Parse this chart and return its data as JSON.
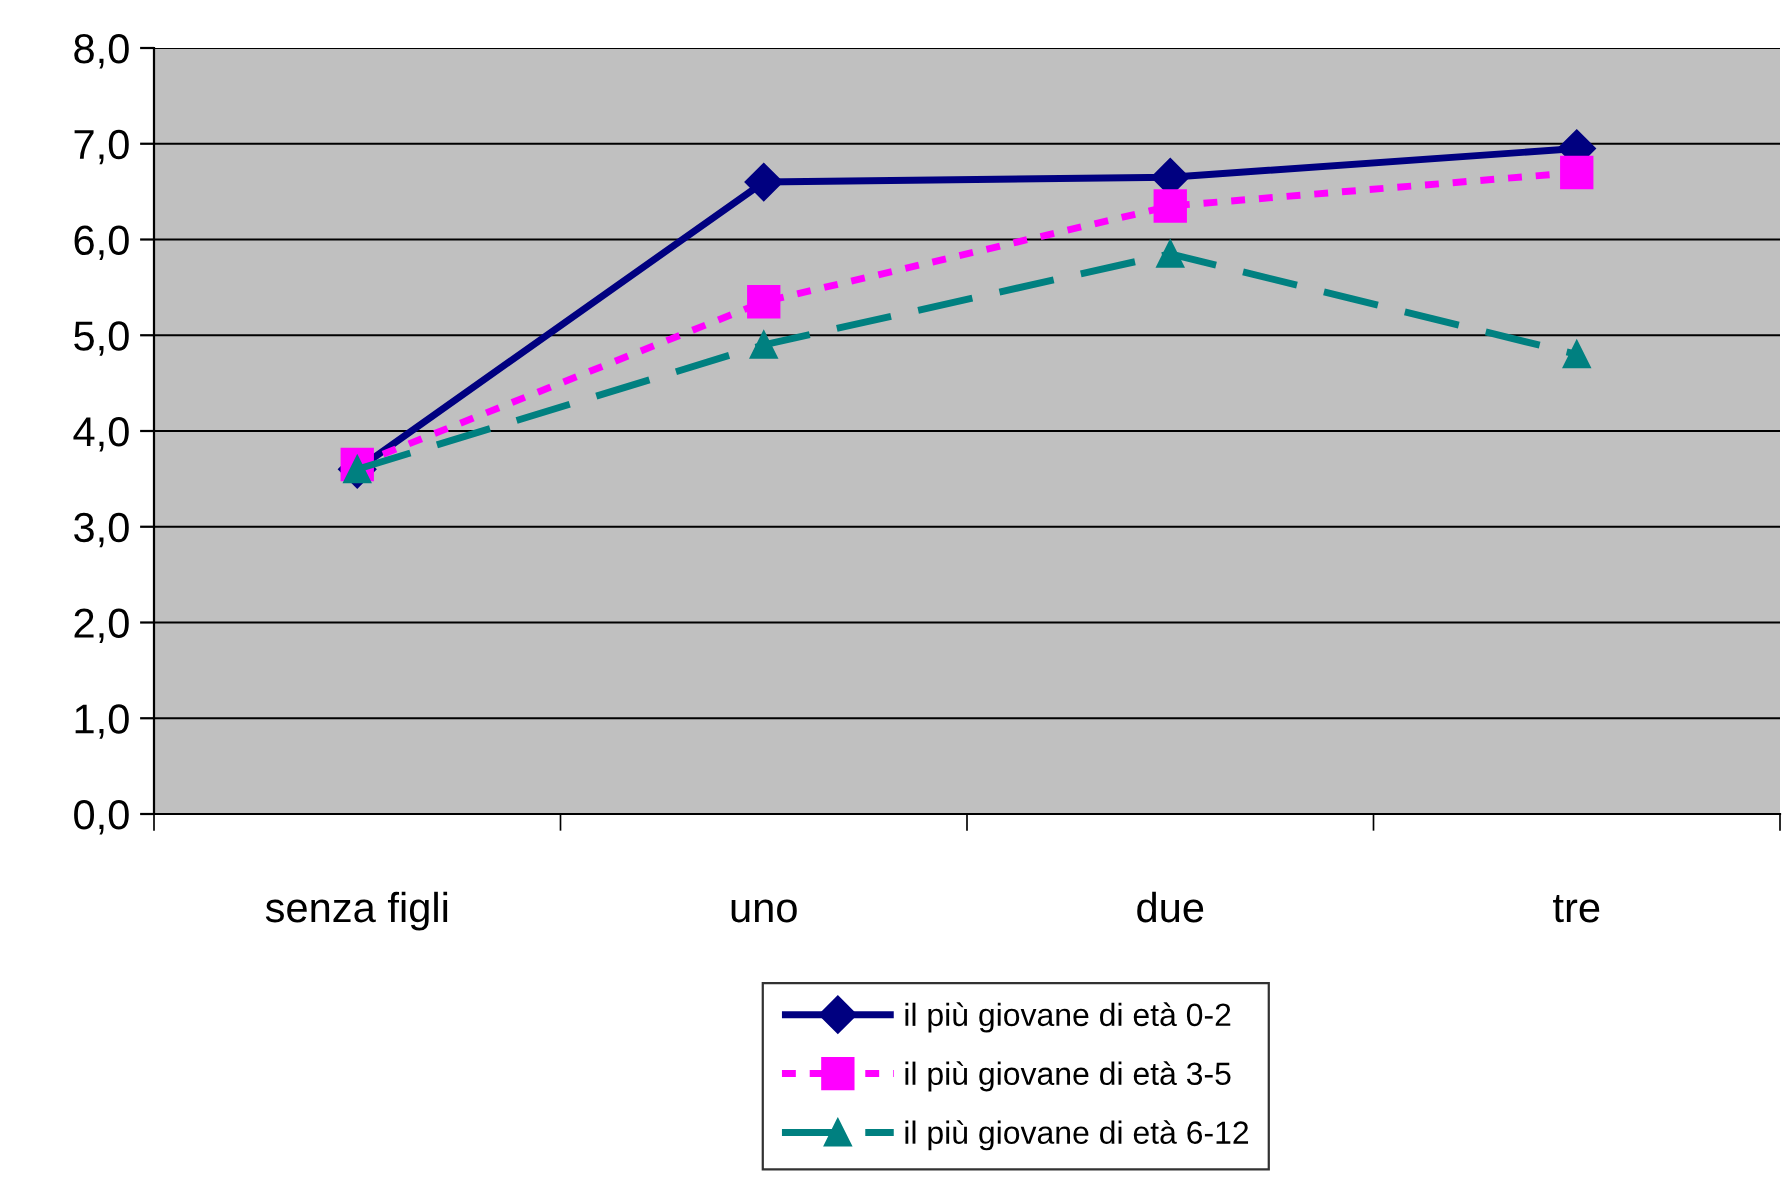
{
  "chart_data": {
    "type": "line",
    "categories": [
      "senza figli",
      "uno",
      "due",
      "tre"
    ],
    "series": [
      {
        "name": "il più giovane di età 0-2",
        "color": "#000080",
        "marker": "diamond",
        "line_style": "solid",
        "values": [
          3.6,
          6.6,
          6.65,
          6.95
        ]
      },
      {
        "name": "il più giovane di età 3-5",
        "color": "#ff00ff",
        "marker": "square",
        "line_style": "dotted",
        "values": [
          3.65,
          5.35,
          6.35,
          6.7
        ]
      },
      {
        "name": "il più giovane di età 6-12",
        "color": "#008080",
        "marker": "triangle",
        "line_style": "dashed",
        "values": [
          3.6,
          4.9,
          5.85,
          4.8
        ]
      }
    ],
    "ylim": [
      0,
      8
    ],
    "yticks": [
      {
        "value": 0,
        "label": "0,0"
      },
      {
        "value": 1,
        "label": "1,0"
      },
      {
        "value": 2,
        "label": "2,0"
      },
      {
        "value": 3,
        "label": "3,0"
      },
      {
        "value": 4,
        "label": "4,0"
      },
      {
        "value": 5,
        "label": "5,0"
      },
      {
        "value": 6,
        "label": "6,0"
      },
      {
        "value": 7,
        "label": "7,0"
      },
      {
        "value": 8,
        "label": "8,0"
      }
    ],
    "grid": "y",
    "legend": "bottom"
  }
}
